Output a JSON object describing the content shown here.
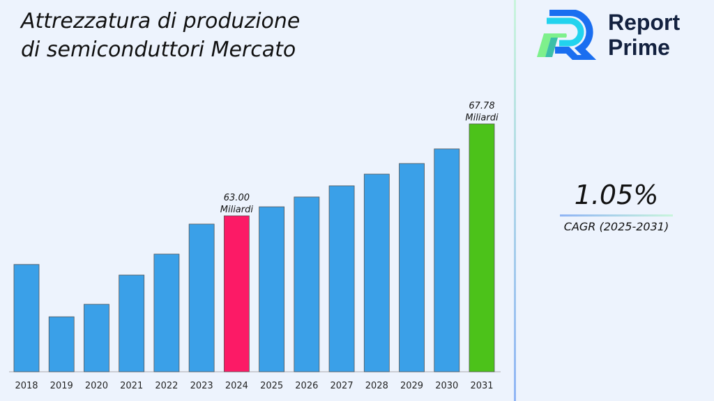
{
  "title": "Attrezzatura di produzione di semiconduttori Mercato",
  "logo": {
    "line1": "Report",
    "line2": "Prime"
  },
  "cagr": {
    "value": "1.05%",
    "label": "CAGR (2025-2031)"
  },
  "chart_data": {
    "type": "bar",
    "title": "Attrezzatura di produzione di semiconduttori Mercato",
    "categories": [
      "2018",
      "2019",
      "2020",
      "2021",
      "2022",
      "2023",
      "2024",
      "2025",
      "2026",
      "2027",
      "2028",
      "2029",
      "2030",
      "2031"
    ],
    "values": [
      60.47,
      57.75,
      58.4,
      59.92,
      61.01,
      62.57,
      63.0,
      63.47,
      63.98,
      64.56,
      65.17,
      65.72,
      66.48,
      67.78
    ],
    "ylim": [
      54.89,
      69.0
    ],
    "colors": {
      "default": "#3aa0e8",
      "highlight_2024": "#fc1a66",
      "highlight_2031": "#4cc21a"
    },
    "annotations": [
      {
        "category": "2024",
        "value": "63.00",
        "unit": "Miliardi"
      },
      {
        "category": "2031",
        "value": "67.78",
        "unit": "Miliardi"
      }
    ],
    "grid": false,
    "legend": "none"
  }
}
